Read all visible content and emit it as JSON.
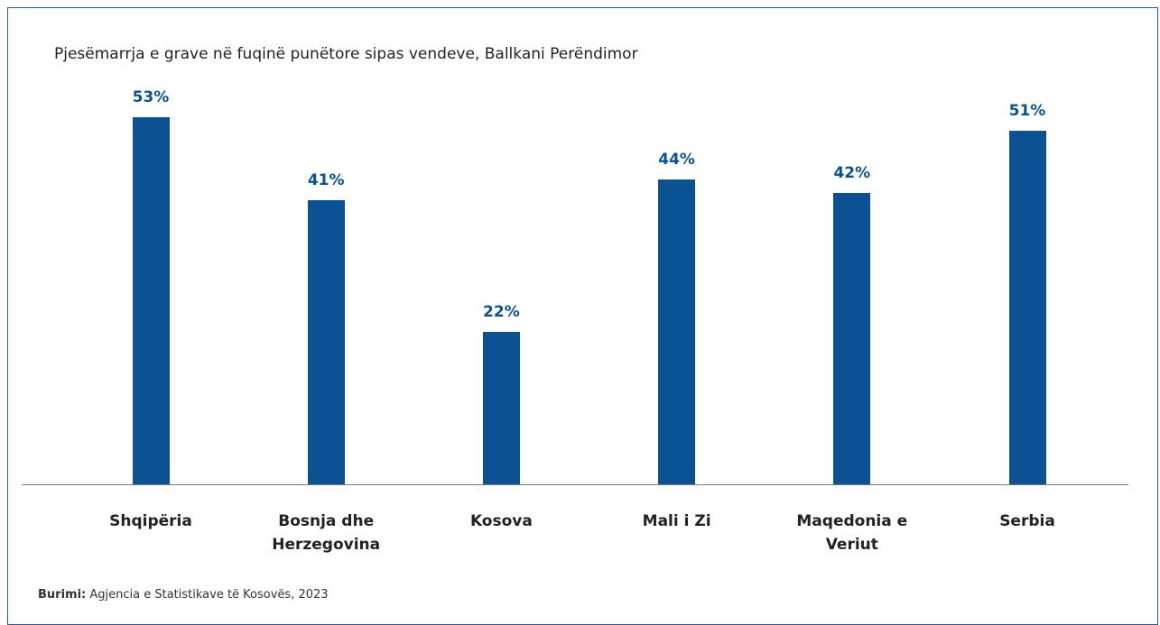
{
  "chart_data": {
    "type": "bar",
    "title": "Pjesëmarrja e grave në fuqinë punëtore sipas vendeve, Ballkani Perëndimor",
    "categories": [
      "Shqipëria",
      "Bosnja dhe Herzegovina",
      "Kosova",
      "Mali i Zi",
      "Maqedonia e Veriut",
      "Serbia"
    ],
    "values": [
      53,
      41,
      22,
      44,
      42,
      51
    ],
    "value_labels": [
      "53%",
      "41%",
      "22%",
      "44%",
      "42%",
      "51%"
    ],
    "color": "#0a5294",
    "source_label": "Burimi:",
    "source_text": "Agjencia e Statistikave të Kosovës, 2023"
  }
}
